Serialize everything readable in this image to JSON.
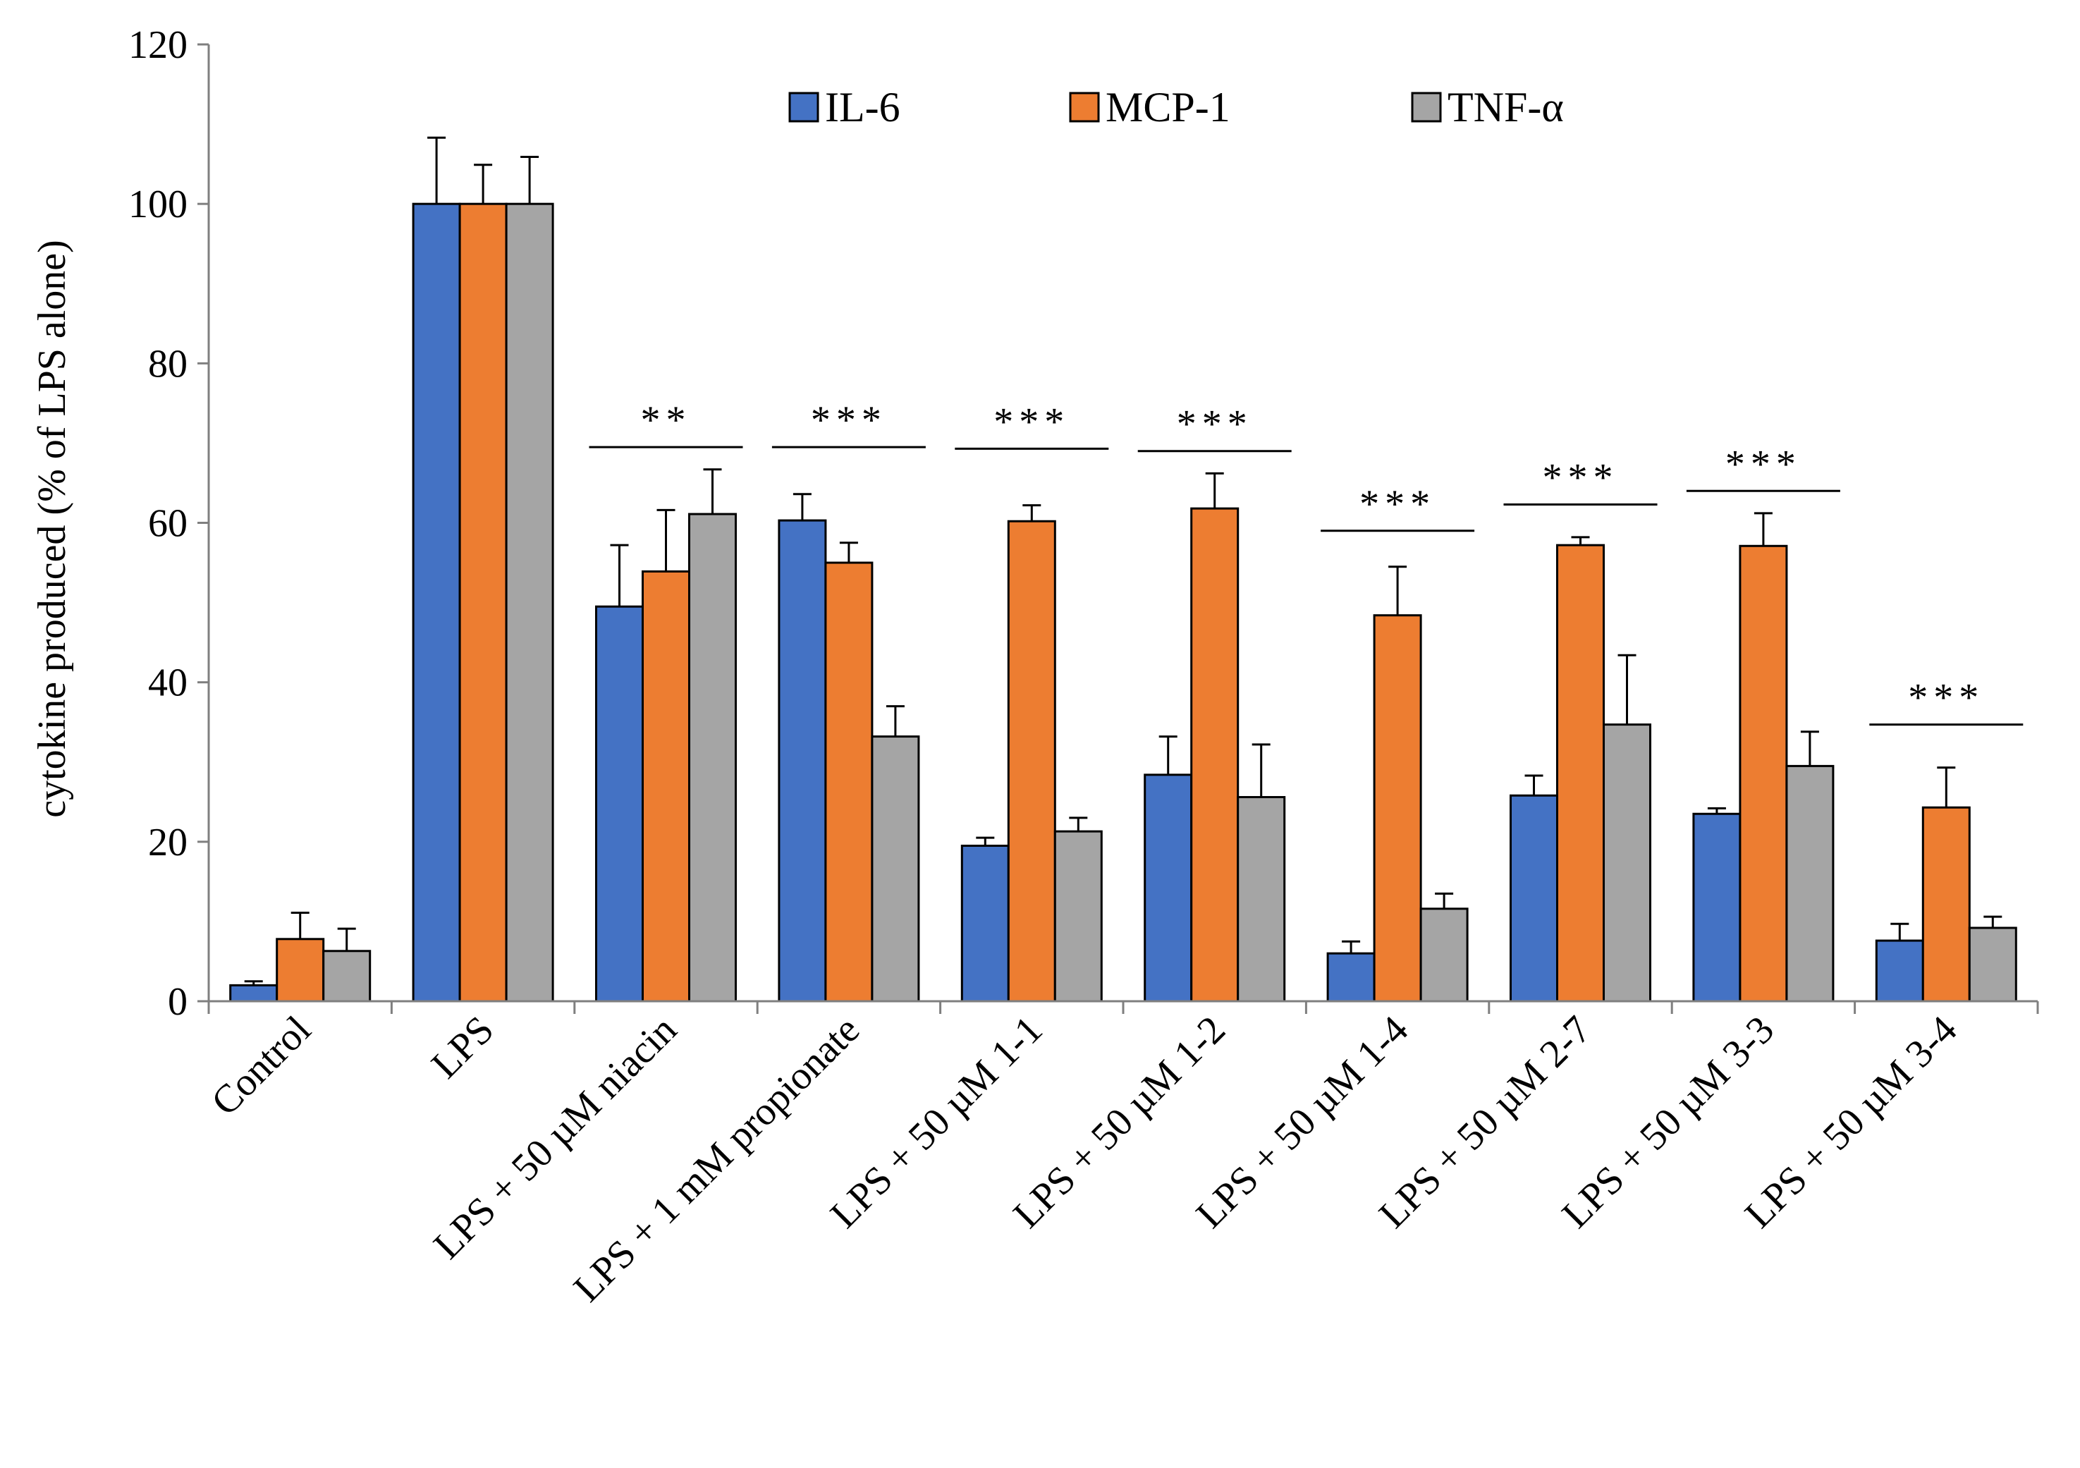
{
  "chart_data": {
    "type": "bar",
    "title": "",
    "xlabel": "",
    "ylabel": "cytokine produced (% of LPS alone)",
    "ylim": [
      0,
      120
    ],
    "yticks": [
      0,
      20,
      40,
      60,
      80,
      100,
      120
    ],
    "yticklabels": [
      "0",
      "20",
      "40",
      "60",
      "80",
      "100",
      "120"
    ],
    "grid": false,
    "legend_position": "top",
    "categories": [
      "Control",
      "LPS",
      "LPS + 50 µM niacin",
      "LPS + 1 mM propionate",
      "LPS +  50 µM 1-1",
      "LPS +  50 µM 1-2",
      "LPS +  50 µM 1-4",
      "LPS +  50 µM 2-7",
      "LPS +  50 µM 3-3",
      "LPS +  50 µM 3-4"
    ],
    "series": [
      {
        "name": "IL-6",
        "color": "#4472c4",
        "values": [
          2,
          100,
          49.5,
          60.3,
          19.5,
          28.4,
          6,
          25.8,
          23.5,
          7.6
        ],
        "errors": [
          0.5,
          8.3,
          7.7,
          3.3,
          1.0,
          4.8,
          1.5,
          2.5,
          0.7,
          2.1
        ]
      },
      {
        "name": "MCP-1",
        "color": "#ed7d31",
        "values": [
          7.8,
          100,
          53.9,
          55.0,
          60.2,
          61.8,
          48.4,
          57.2,
          57.1,
          24.3
        ],
        "errors": [
          3.3,
          4.9,
          7.7,
          2.5,
          2.0,
          4.4,
          6.1,
          1.0,
          4.1,
          5.0
        ]
      },
      {
        "name": "TNF-α",
        "color": "#a5a5a5",
        "values": [
          6.3,
          100,
          61.1,
          33.2,
          21.3,
          25.6,
          11.6,
          34.7,
          29.5,
          9.2
        ],
        "errors": [
          2.8,
          5.9,
          5.6,
          3.8,
          1.7,
          6.6,
          1.9,
          8.7,
          4.3,
          1.4
        ]
      }
    ],
    "significance": [
      {
        "category_index": 2,
        "label": "**",
        "line_y": 69.5
      },
      {
        "category_index": 3,
        "label": "***",
        "line_y": 69.5
      },
      {
        "category_index": 4,
        "label": "***",
        "line_y": 69.3
      },
      {
        "category_index": 5,
        "label": "***",
        "line_y": 69.0
      },
      {
        "category_index": 6,
        "label": "***",
        "line_y": 59.0
      },
      {
        "category_index": 7,
        "label": "***",
        "line_y": 62.3
      },
      {
        "category_index": 8,
        "label": "***",
        "line_y": 64.0
      },
      {
        "category_index": 9,
        "label": "***",
        "line_y": 34.7
      }
    ]
  }
}
